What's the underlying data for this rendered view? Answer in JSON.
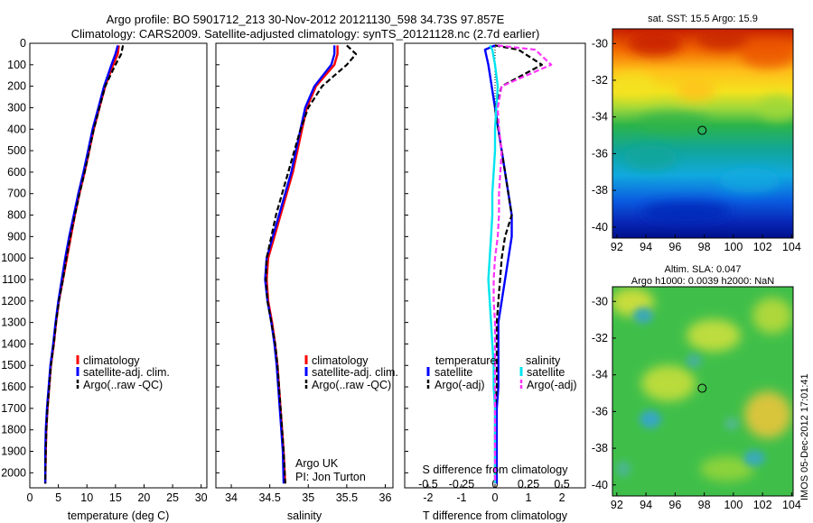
{
  "title": {
    "line1": "Argo profile: BO 5901712_213 30-Nov-2012 20121130_598 34.73S 97.857E",
    "line2": "Climatology: CARS2009. Satellite-adjusted climatology: synTS_20121128.nc (2.7d earlier)"
  },
  "colors": {
    "climatology": "#ff0000",
    "satellite": "#0000ff",
    "argo": "#000000",
    "sal_satellite": "#00e5ee",
    "sal_argo": "#ff33ff"
  },
  "chart_data": [
    {
      "id": "temperature",
      "type": "line",
      "xlabel": "temperature (deg C)",
      "ylabel": "",
      "xlim": [
        0,
        31
      ],
      "ylim": [
        2070,
        0
      ],
      "xticks": [
        0,
        5,
        10,
        15,
        20,
        25,
        30
      ],
      "yticks": [
        0,
        100,
        200,
        300,
        400,
        500,
        600,
        700,
        800,
        900,
        1000,
        1100,
        1200,
        1300,
        1400,
        1500,
        1600,
        1700,
        1800,
        1900,
        2000
      ],
      "legend": [
        "climatology",
        "satellite-adj. clim.",
        "Argo(..raw -QC)"
      ],
      "series": [
        {
          "name": "climatology",
          "style": "solid",
          "color": "climatology",
          "x": [
            15.6,
            15.4,
            14.6,
            13.2,
            12.2,
            11.2,
            10.4,
            9.6,
            8.7,
            7.9,
            7.2,
            6.5,
            5.8,
            5.1,
            4.6,
            4.2,
            3.7,
            3.4,
            3.1,
            2.9,
            2.8,
            2.7
          ],
          "y": [
            10,
            50,
            100,
            200,
            300,
            400,
            500,
            600,
            700,
            800,
            900,
            1000,
            1100,
            1200,
            1300,
            1400,
            1500,
            1600,
            1700,
            1800,
            1900,
            2050
          ]
        },
        {
          "name": "satellite-adj. clim.",
          "style": "solid",
          "color": "satellite",
          "x": [
            15.4,
            15.0,
            14.3,
            13.0,
            12.0,
            11.0,
            10.2,
            9.4,
            8.5,
            7.7,
            6.9,
            6.2,
            5.6,
            5.0,
            4.5,
            4.1,
            3.6,
            3.3,
            3.0,
            2.8,
            2.7,
            2.7
          ],
          "y": [
            10,
            50,
            100,
            200,
            300,
            400,
            500,
            600,
            700,
            800,
            900,
            1000,
            1100,
            1200,
            1300,
            1400,
            1500,
            1600,
            1700,
            1800,
            1900,
            2050
          ]
        },
        {
          "name": "Argo(..raw -QC)",
          "style": "dashed",
          "color": "argo",
          "x": [
            16.3,
            16.0,
            15.0,
            13.2,
            12.2,
            11.2,
            10.4,
            9.6,
            8.7,
            7.9,
            7.1,
            6.4,
            5.8,
            5.1,
            4.6,
            4.2,
            3.7,
            3.4,
            3.1,
            2.9,
            2.8,
            2.7
          ],
          "y": [
            10,
            50,
            100,
            200,
            300,
            400,
            500,
            600,
            700,
            800,
            900,
            1000,
            1100,
            1200,
            1300,
            1400,
            1500,
            1600,
            1700,
            1800,
            1900,
            2050
          ]
        }
      ]
    },
    {
      "id": "salinity",
      "type": "line",
      "xlabel": "salinity",
      "ylabel": "",
      "xlim": [
        33.8,
        36.1
      ],
      "ylim": [
        2070,
        0
      ],
      "xticks": [
        34,
        34.5,
        35,
        35.5,
        36
      ],
      "legend": [
        "climatology",
        "satellite-adj. clim.",
        "Argo(..raw -QC)"
      ],
      "annotation": [
        "Argo UK",
        "PI: Jon Turton"
      ],
      "series": [
        {
          "name": "climatology",
          "style": "solid",
          "color": "climatology",
          "x": [
            35.38,
            35.38,
            35.34,
            35.1,
            34.98,
            34.92,
            34.86,
            34.8,
            34.72,
            34.64,
            34.56,
            34.48,
            34.46,
            34.48,
            34.53,
            34.57,
            34.6,
            34.62,
            34.64,
            34.66,
            34.68,
            34.7
          ],
          "y": [
            10,
            50,
            100,
            200,
            300,
            400,
            500,
            600,
            700,
            800,
            900,
            1000,
            1100,
            1200,
            1300,
            1400,
            1500,
            1600,
            1700,
            1800,
            1900,
            2050
          ]
        },
        {
          "name": "satellite-adj. clim.",
          "style": "solid",
          "color": "satellite",
          "x": [
            35.34,
            35.34,
            35.3,
            35.08,
            34.96,
            34.9,
            34.84,
            34.78,
            34.7,
            34.62,
            34.54,
            34.46,
            34.44,
            34.47,
            34.52,
            34.56,
            34.59,
            34.61,
            34.63,
            34.65,
            34.67,
            34.68
          ],
          "y": [
            10,
            50,
            100,
            200,
            300,
            400,
            500,
            600,
            700,
            800,
            900,
            1000,
            1100,
            1200,
            1300,
            1400,
            1500,
            1600,
            1700,
            1800,
            1900,
            2050
          ]
        },
        {
          "name": "Argo(..raw -QC)",
          "style": "dashed",
          "color": "argo",
          "x": [
            35.5,
            35.62,
            35.5,
            35.18,
            35.0,
            34.9,
            34.82,
            34.74,
            34.66,
            34.58,
            34.52,
            34.46,
            34.45,
            34.47,
            34.52,
            34.57,
            34.6,
            34.62,
            34.64,
            34.66,
            34.68,
            34.7
          ],
          "y": [
            10,
            50,
            100,
            200,
            300,
            400,
            500,
            600,
            700,
            800,
            900,
            1000,
            1100,
            1200,
            1300,
            1400,
            1500,
            1600,
            1700,
            1800,
            1900,
            2050
          ]
        }
      ]
    },
    {
      "id": "differences",
      "type": "line",
      "xlabel_bottom": "T difference from climatology",
      "xlabel_top": "S difference from climatology",
      "xlim": [
        -2.7,
        2.7
      ],
      "ylim": [
        2070,
        0
      ],
      "xticks_T": [
        -2,
        -1,
        0,
        1,
        2
      ],
      "xticks_S": [
        -0.5,
        -0.25,
        0,
        0.25,
        0.5
      ],
      "xticks_S_labels": [
        "-0.5",
        "-0.25",
        "0",
        "0.25",
        "0.5"
      ],
      "legend_groups": [
        {
          "header": "temperature",
          "items": [
            "satellite",
            "Argo(-adj)"
          ]
        },
        {
          "header": "salinity",
          "items": [
            "satellite",
            "Argo(-adj)"
          ]
        }
      ],
      "series": [
        {
          "name": "T satellite",
          "style": "solid",
          "color": "satellite",
          "x": [
            0.0,
            -0.3,
            -0.2,
            -0.1,
            0.0,
            0.1,
            0.2,
            0.3,
            0.4,
            0.5,
            0.5,
            0.4,
            0.3,
            0.2,
            0.1,
            0.1,
            0.1,
            0.1,
            0.05,
            0.05,
            0.05
          ],
          "y": [
            10,
            30,
            100,
            200,
            300,
            400,
            500,
            600,
            700,
            800,
            900,
            1000,
            1100,
            1200,
            1300,
            1400,
            1500,
            1600,
            1700,
            1800,
            2050
          ]
        },
        {
          "name": "T Argo(-adj)",
          "style": "dashed",
          "color": "argo",
          "x": [
            0.0,
            0.7,
            1.4,
            0.2,
            0.0,
            0.1,
            0.2,
            0.3,
            0.4,
            0.5,
            0.3,
            0.2,
            0.15,
            0.1,
            0.05,
            0.05,
            0.05,
            0.05,
            0.0,
            0.0,
            0.0
          ],
          "y": [
            10,
            30,
            100,
            200,
            300,
            400,
            500,
            600,
            700,
            800,
            900,
            1000,
            1100,
            1200,
            1300,
            1400,
            1500,
            1600,
            1700,
            1800,
            2050
          ]
        },
        {
          "name": "S satellite",
          "style": "solid",
          "color": "sal_satellite",
          "x": [
            -0.04,
            -0.02,
            0.0,
            0.02,
            0.01,
            0.0,
            0.0,
            -0.01,
            -0.02,
            -0.02,
            -0.03,
            -0.04,
            -0.05,
            -0.04,
            -0.03,
            -0.02,
            -0.01,
            -0.01,
            0.0,
            0.0,
            0.0
          ],
          "y": [
            10,
            30,
            100,
            200,
            300,
            400,
            500,
            600,
            700,
            800,
            900,
            1000,
            1100,
            1200,
            1300,
            1400,
            1500,
            1600,
            1700,
            1800,
            2050
          ]
        },
        {
          "name": "S Argo(-adj)",
          "style": "dashed",
          "color": "sal_argo",
          "x": [
            0.02,
            0.3,
            0.42,
            0.05,
            0.02,
            0.03,
            0.05,
            0.04,
            0.03,
            0.03,
            0.02,
            0.0,
            -0.01,
            -0.01,
            0.0,
            0.0,
            0.0,
            0.0,
            0.0,
            0.0,
            0.0
          ],
          "y": [
            10,
            30,
            100,
            200,
            300,
            400,
            500,
            600,
            700,
            800,
            900,
            1000,
            1100,
            1200,
            1300,
            1400,
            1500,
            1600,
            1700,
            1800,
            2050
          ]
        }
      ]
    },
    {
      "id": "sst_map",
      "type": "heatmap",
      "title": "sat. SST: 15.5 Argo: 15.9",
      "xlim": [
        91.7,
        104.1
      ],
      "ylim": [
        -40.6,
        -29.2
      ],
      "xticks": [
        92,
        94,
        96,
        98,
        100,
        102,
        104
      ],
      "yticks": [
        -30,
        -32,
        -34,
        -36,
        -38,
        -40
      ],
      "marker": {
        "lon": 97.857,
        "lat": -34.73
      }
    },
    {
      "id": "sla_map",
      "type": "heatmap",
      "title": "Altim. SLA: 0.047",
      "subtitle": "Argo h1000: 0.0039 h2000: NaN",
      "xlim": [
        91.7,
        104.1
      ],
      "ylim": [
        -40.6,
        -29.2
      ],
      "xticks": [
        92,
        94,
        96,
        98,
        100,
        102,
        104
      ],
      "yticks": [
        -30,
        -32,
        -34,
        -36,
        -38,
        -40
      ],
      "marker": {
        "lon": 97.857,
        "lat": -34.73
      }
    }
  ],
  "footer_stamp": "IMOS 05-Dec-2012 17:01:41"
}
